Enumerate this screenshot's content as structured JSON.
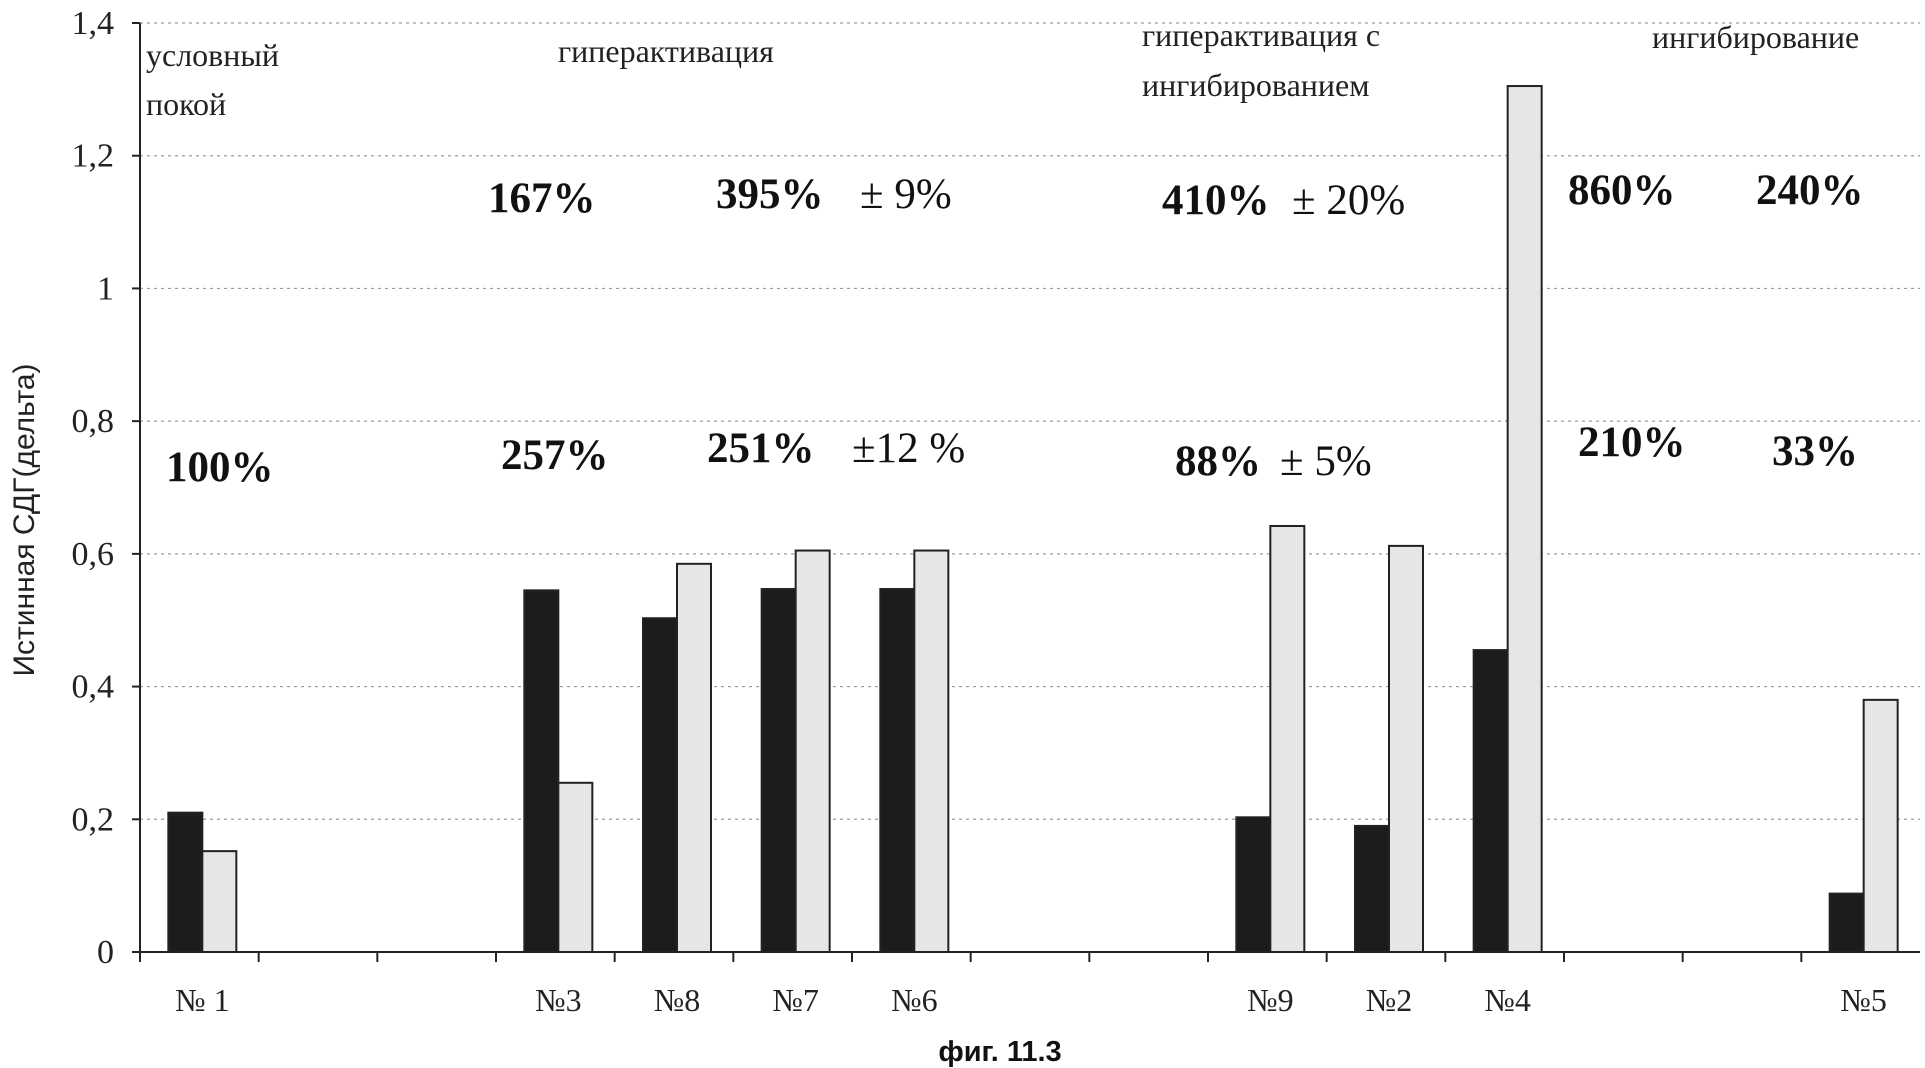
{
  "chart_data": {
    "type": "bar",
    "ylabel": "Истинная СДГ(дельта)",
    "ylim": [
      0,
      1.4
    ],
    "yticks": [
      "0",
      "0,2",
      "0,4",
      "0,6",
      "0,8",
      "1",
      "1,2",
      "1,4"
    ],
    "grid": true,
    "categories": [
      "№ 1",
      "",
      "",
      "№3",
      "№8",
      "№7",
      "№6",
      "",
      "",
      "№9",
      "№2",
      "№4",
      "",
      "",
      "№5"
    ],
    "series": [
      {
        "color": "#1c1c1c",
        "values": [
          0.21,
          null,
          null,
          0.545,
          0.503,
          0.547,
          0.547,
          null,
          null,
          0.203,
          0.19,
          0.455,
          null,
          null,
          0.088
        ]
      },
      {
        "color": "#e6e6e6",
        "values": [
          0.152,
          null,
          null,
          0.255,
          0.585,
          0.605,
          0.605,
          null,
          null,
          0.642,
          0.612,
          1.305,
          null,
          null,
          0.38
        ]
      }
    ],
    "group_labels": [
      {
        "lines": [
          "условный",
          "покой"
        ]
      },
      {
        "lines": [
          "гиперактивация"
        ]
      },
      {
        "lines": [
          "гиперактивация с",
          "ингибированием"
        ]
      },
      {
        "lines": [
          "ингибирование"
        ]
      }
    ],
    "annotations": {
      "upper": [
        {
          "value": "167%"
        },
        {
          "value": "395%",
          "pm": "± 9%"
        },
        {
          "value": "410%",
          "pm": "± 20%"
        },
        {
          "value": "860%"
        },
        {
          "value": "240%"
        }
      ],
      "lower": [
        {
          "value": "100%"
        },
        {
          "value": "257%"
        },
        {
          "value": "251%",
          "pm": "±12 %"
        },
        {
          "value": "88%",
          "pm": "± 5%"
        },
        {
          "value": "210%"
        },
        {
          "value": "33%"
        }
      ]
    },
    "caption": "фиг. 11.3"
  }
}
